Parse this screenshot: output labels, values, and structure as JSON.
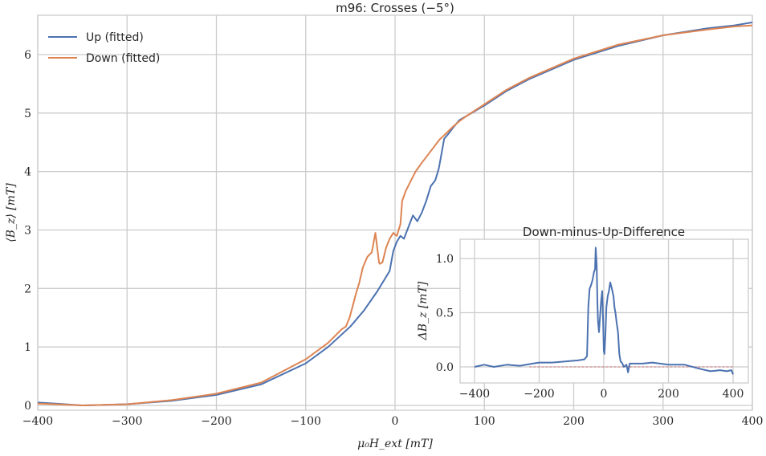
{
  "chart_data": [
    {
      "type": "line",
      "title": "m96: Crosses (−5°)",
      "xlabel": "μ₀H_ext [mT]",
      "ylabel": "⟨B_z⟩ [mT]",
      "xlim": [
        -400,
        400
      ],
      "ylim": [
        -0.1,
        6.6
      ],
      "grid": true,
      "legend_position": "top-left",
      "xticks": [
        -400,
        -300,
        -200,
        -100,
        0,
        100,
        200,
        300,
        400
      ],
      "xtick_labels": [
        "−400",
        "−300",
        "−200",
        "−100",
        "0",
        "100",
        "200",
        "300",
        "400"
      ],
      "yticks": [
        0,
        1,
        2,
        3,
        4,
        5,
        6
      ],
      "ytick_labels": [
        "0",
        "1",
        "2",
        "3",
        "4",
        "5",
        "6"
      ],
      "series": [
        {
          "name": "Up (fitted)",
          "color": "#4c72b0",
          "x": [
            -400,
            -380,
            -350,
            -300,
            -250,
            -200,
            -150,
            -100,
            -75,
            -50,
            -35,
            -20,
            -10,
            -6,
            -2,
            2,
            6,
            10,
            16,
            20,
            25,
            30,
            35,
            40,
            45,
            49,
            52,
            55,
            60,
            65,
            72,
            80,
            100,
            125,
            150,
            200,
            250,
            300,
            350,
            380,
            400
          ],
          "y": [
            0.05,
            0.03,
            0.0,
            0.02,
            0.08,
            0.18,
            0.36,
            0.72,
            1.0,
            1.35,
            1.62,
            1.95,
            2.2,
            2.3,
            2.64,
            2.8,
            2.9,
            2.85,
            3.09,
            3.25,
            3.15,
            3.3,
            3.5,
            3.75,
            3.85,
            4.05,
            4.3,
            4.56,
            4.65,
            4.75,
            4.88,
            4.95,
            5.13,
            5.38,
            5.58,
            5.91,
            6.15,
            6.33,
            6.45,
            6.5,
            6.55
          ]
        },
        {
          "name": "Down (fitted)",
          "color": "#dd8452",
          "x": [
            -400,
            -380,
            -350,
            -300,
            -250,
            -200,
            -150,
            -100,
            -75,
            -60,
            -55,
            -51,
            -47,
            -44,
            -40,
            -36,
            -31,
            -26,
            -22,
            -20,
            -18,
            -17,
            -14,
            -10,
            -6,
            -2,
            2,
            6,
            8,
            12,
            18,
            23,
            30,
            40,
            50,
            55,
            65,
            72,
            80,
            100,
            125,
            150,
            200,
            250,
            300,
            350,
            380,
            400
          ],
          "y": [
            0.03,
            0.02,
            0.0,
            0.02,
            0.09,
            0.2,
            0.39,
            0.79,
            1.07,
            1.3,
            1.35,
            1.5,
            1.72,
            1.9,
            2.1,
            2.36,
            2.54,
            2.62,
            2.95,
            2.7,
            2.45,
            2.42,
            2.45,
            2.7,
            2.85,
            2.95,
            2.9,
            3.1,
            3.5,
            3.67,
            3.85,
            4.0,
            4.15,
            4.35,
            4.55,
            4.62,
            4.77,
            4.86,
            4.95,
            5.15,
            5.4,
            5.6,
            5.93,
            6.17,
            6.33,
            6.43,
            6.48,
            6.5
          ]
        }
      ]
    },
    {
      "type": "line",
      "title": "Down-minus-Up-Difference",
      "xlabel": "",
      "ylabel": "ΔB_z [mT]",
      "xlim": [
        -440,
        440
      ],
      "ylim": [
        -0.15,
        1.2
      ],
      "grid": true,
      "xticks": [
        -400,
        -200,
        0,
        200,
        400
      ],
      "xtick_labels": [
        "−400",
        "−200",
        "0",
        "200",
        "400"
      ],
      "yticks": [
        0,
        0.5,
        1.0
      ],
      "ytick_labels": [
        "0.0",
        "0.5",
        "1.0"
      ],
      "reference_line": {
        "y": 0,
        "color": "#c44e52",
        "style": "dashed"
      },
      "series": [
        {
          "name": "Difference",
          "color": "#4c72b0",
          "x": [
            -400,
            -370,
            -340,
            -300,
            -260,
            -220,
            -200,
            -160,
            -120,
            -80,
            -60,
            -52,
            -48,
            -44,
            -40,
            -35,
            -30,
            -27,
            -25,
            -22,
            -20,
            -18,
            -15,
            -12,
            -8,
            -5,
            -2,
            0,
            2,
            5,
            8,
            12,
            16,
            20,
            25,
            30,
            33,
            36,
            40,
            44,
            48,
            52,
            56,
            62,
            70,
            75,
            80,
            90,
            120,
            150,
            200,
            250,
            300,
            330,
            360,
            380,
            395,
            400
          ],
          "y": [
            0.0,
            0.02,
            0.0,
            0.02,
            0.01,
            0.03,
            0.04,
            0.04,
            0.05,
            0.06,
            0.07,
            0.1,
            0.55,
            0.72,
            0.75,
            0.8,
            0.88,
            0.9,
            1.1,
            0.95,
            0.6,
            0.42,
            0.32,
            0.45,
            0.62,
            0.7,
            0.4,
            0.15,
            0.12,
            0.3,
            0.55,
            0.65,
            0.7,
            0.78,
            0.72,
            0.65,
            0.55,
            0.5,
            0.4,
            0.32,
            0.12,
            0.05,
            0.04,
            0.0,
            0.02,
            -0.05,
            0.03,
            0.03,
            0.03,
            0.04,
            0.02,
            0.02,
            -0.02,
            -0.04,
            -0.03,
            -0.04,
            -0.03,
            -0.07
          ]
        }
      ]
    }
  ]
}
